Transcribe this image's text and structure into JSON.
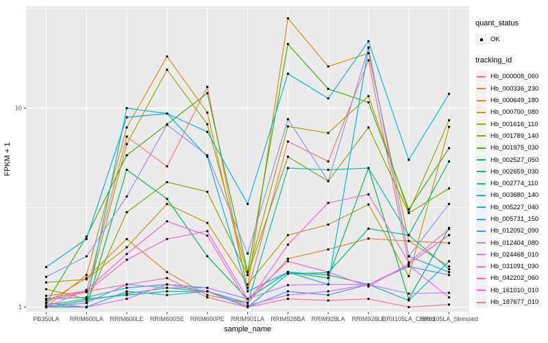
{
  "legend": {
    "quant_title": "quant_status",
    "ok_label": "OK",
    "tracking_title": "tracking_id",
    "key_bg": "#F2F2F2"
  },
  "chart_data": {
    "type": "line",
    "title": "",
    "xlabel": "sample_name",
    "ylabel": "FPKM + 1",
    "y_scale": "log10",
    "y_tick_labels": [
      "1",
      "10"
    ],
    "y_tick_values": [
      1,
      10
    ],
    "y_minor_gridlines": [
      3.162,
      31.62
    ],
    "ylim": [
      0.94,
      33
    ],
    "grid": true,
    "panel_bg": "#EBEBEB",
    "grid_color": "#FFFFFF",
    "point_shape": "small-black-square",
    "point_color": "#000000",
    "legend_position": "right",
    "categories": [
      "PB350LA",
      "RRIM600LA",
      "RRIM600LE",
      "RRIM600SE",
      "RRIM600PE",
      "RRIM901LA",
      "RRIM928BA",
      "RRIM928LA",
      "RRIM928LE",
      "RRII105LA_Control",
      "RRII105LA_Stressed"
    ],
    "series": [
      {
        "tracking_id": "Hb_000008_060",
        "color": "#F8766D",
        "quant_status": "OK",
        "values": [
          1.1,
          1.2,
          7.2,
          5.1,
          12.8,
          1.2,
          6.8,
          5.4,
          17.4,
          1.65,
          2.3
        ]
      },
      {
        "tracking_id": "Hb_000336_230",
        "color": "#E88526",
        "quant_status": "OK",
        "values": [
          1.05,
          1.4,
          2.2,
          1.5,
          1.15,
          1.05,
          1.75,
          1.95,
          2.21,
          2.15,
          2.1
        ]
      },
      {
        "tracking_id": "Hb_000649_180",
        "color": "#D89000",
        "quant_status": "OK",
        "values": [
          1.0,
          1.45,
          8.0,
          18.2,
          9.5,
          1.25,
          28.3,
          16.2,
          18.9,
          2.15,
          1.6
        ]
      },
      {
        "tracking_id": "Hb_000700_080",
        "color": "#C09B00",
        "quant_status": "OK",
        "values": [
          1.33,
          1.38,
          2.0,
          3.3,
          2.65,
          1.3,
          2.3,
          2.6,
          3.28,
          1.43,
          8.05
        ]
      },
      {
        "tracking_id": "Hb_001616_110",
        "color": "#A3A500",
        "quant_status": "OK",
        "values": [
          1.23,
          1.1,
          6.6,
          15.6,
          8.3,
          1.45,
          8.1,
          7.5,
          11.5,
          3.0,
          8.7
        ]
      },
      {
        "tracking_id": "Hb_001789_140",
        "color": "#7CAE00",
        "quant_status": "OK",
        "values": [
          1.0,
          1.05,
          3.0,
          4.25,
          3.8,
          1.45,
          5.7,
          4.3,
          8.0,
          2.97,
          3.95
        ]
      },
      {
        "tracking_id": "Hb_001975_030",
        "color": "#39B600",
        "quant_status": "OK",
        "values": [
          1.05,
          2.26,
          5.8,
          8.3,
          11.9,
          1.5,
          21.0,
          12.5,
          10.7,
          3.1,
          6.3
        ]
      },
      {
        "tracking_id": "Hb_002527_050",
        "color": "#00BB4E",
        "quant_status": "OK",
        "values": [
          1.0,
          1.0,
          4.9,
          3.5,
          1.8,
          1.1,
          1.5,
          1.4,
          5.0,
          1.1,
          2.5
        ]
      },
      {
        "tracking_id": "Hb_002659_030",
        "color": "#00BF7D",
        "quant_status": "OK",
        "values": [
          1.02,
          1.1,
          1.15,
          1.2,
          1.2,
          1.0,
          1.47,
          1.49,
          2.48,
          2.3,
          5.4
        ]
      },
      {
        "tracking_id": "Hb_002774_110",
        "color": "#00C1A3",
        "quant_status": "OK",
        "values": [
          1.0,
          1.08,
          1.17,
          1.25,
          1.2,
          1.05,
          5.0,
          4.9,
          5.0,
          2.3,
          1.55
        ]
      },
      {
        "tracking_id": "Hb_003680_140",
        "color": "#00BFC4",
        "quant_status": "OK",
        "values": [
          1.1,
          1.12,
          1.25,
          1.3,
          1.25,
          1.1,
          1.5,
          1.45,
          1.3,
          1.08,
          1.7
        ]
      },
      {
        "tracking_id": "Hb_005227_040",
        "color": "#00BAE0",
        "quant_status": "OK",
        "values": [
          1.0,
          1.05,
          10.0,
          9.4,
          7.6,
          3.3,
          14.9,
          11.2,
          21.7,
          5.5,
          11.8
        ]
      },
      {
        "tracking_id": "Hb_005731_150",
        "color": "#00B0F6",
        "quant_status": "OK",
        "values": [
          1.59,
          2.2,
          9.0,
          9.4,
          5.7,
          1.2,
          1.5,
          1.3,
          20.1,
          1.8,
          1.5
        ]
      },
      {
        "tracking_id": "Hb_012092_090",
        "color": "#35A2FF",
        "quant_status": "OK",
        "values": [
          1.05,
          1.0,
          1.2,
          1.15,
          1.2,
          1.0,
          1.2,
          1.15,
          1.3,
          1.6,
          1.45
        ]
      },
      {
        "tracking_id": "Hb_012404_080",
        "color": "#9590FF",
        "quant_status": "OK",
        "values": [
          1.42,
          1.8,
          3.6,
          8.25,
          5.8,
          1.86,
          8.8,
          4.3,
          20.2,
          1.8,
          3.3
        ]
      },
      {
        "tracking_id": "Hb_024468_010",
        "color": "#C77CFF",
        "quant_status": "OK",
        "values": [
          1.0,
          1.05,
          1.3,
          1.25,
          1.25,
          1.1,
          1.29,
          1.3,
          1.3,
          1.17,
          1.18
        ]
      },
      {
        "tracking_id": "Hb_031091_030",
        "color": "#E76BF3",
        "quant_status": "OK",
        "values": [
          1.02,
          1.0,
          1.1,
          1.3,
          1.2,
          1.02,
          1.15,
          1.2,
          1.3,
          1.62,
          1.12
        ]
      },
      {
        "tracking_id": "Hb_042202_060",
        "color": "#FA62DB",
        "quant_status": "OK",
        "values": [
          1.0,
          1.22,
          1.85,
          2.7,
          2.29,
          1.05,
          2.06,
          3.34,
          3.69,
          1.68,
          2.47
        ]
      },
      {
        "tracking_id": "Hb_161010_010",
        "color": "#FF61CC",
        "quant_status": "OK",
        "values": [
          1.08,
          1.19,
          1.73,
          2.2,
          2.41,
          1.1,
          1.7,
          1.5,
          1.27,
          1.65,
          2.3
        ]
      },
      {
        "tracking_id": "Hb_187677_010",
        "color": "#FF6A98",
        "quant_status": "OK",
        "values": [
          1.14,
          1.2,
          1.3,
          1.4,
          1.12,
          1.0,
          1.1,
          1.08,
          1.1,
          1.0,
          1.03
        ]
      }
    ]
  }
}
